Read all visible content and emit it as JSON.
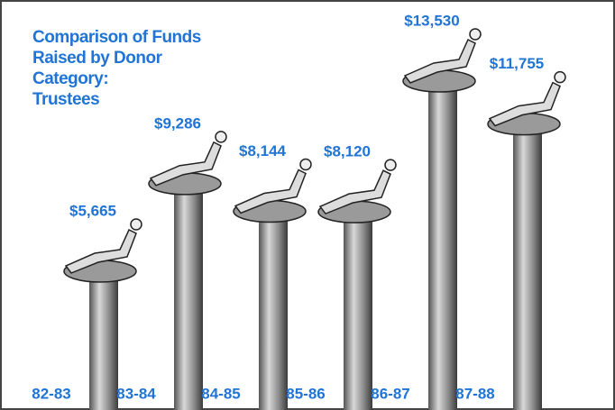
{
  "chart_data": {
    "type": "bar",
    "title": "Comparison of Funds\nRaised by Donor\nCategory:\nTrustees",
    "categories": [
      "82-83",
      "83-84",
      "84-85",
      "85-86",
      "86-87",
      "87-88"
    ],
    "values": [
      5665,
      9286,
      8144,
      8120,
      13530,
      11755
    ],
    "value_labels": [
      "$5,665",
      "$9,286",
      "$8,144",
      "$8,120",
      "$13,530",
      "$11,755"
    ],
    "color": "#1f74d6"
  }
}
